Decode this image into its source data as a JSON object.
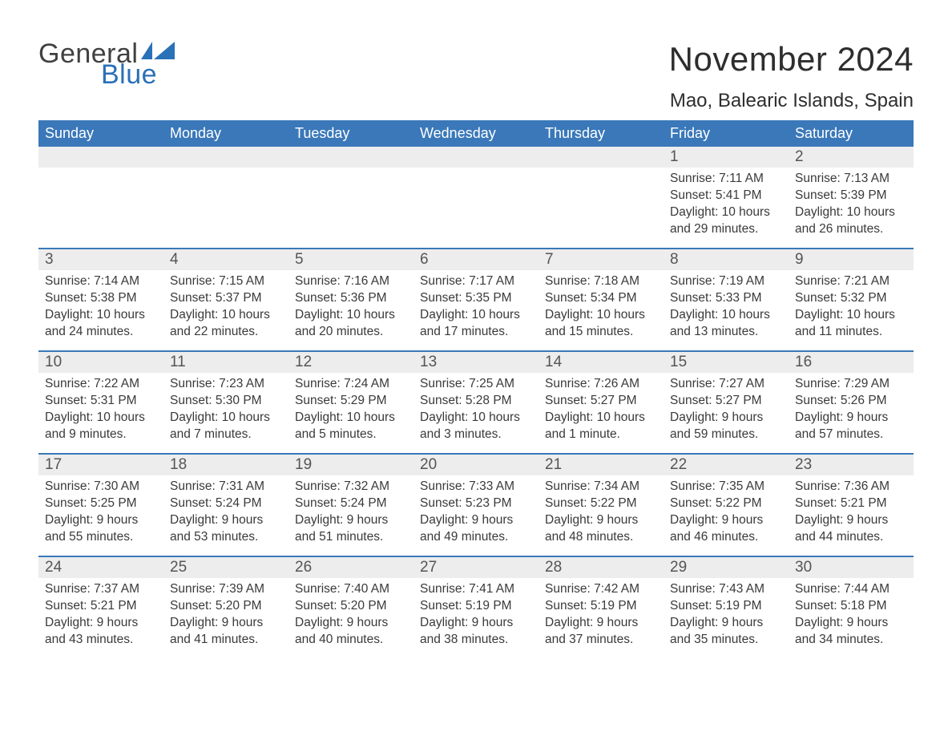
{
  "logo": {
    "text1": "General",
    "text2": "Blue",
    "flag_color": "#2a71b8"
  },
  "title": "November 2024",
  "location": "Mao, Balearic Islands, Spain",
  "colors": {
    "header_bg": "#3a78b9",
    "header_text": "#ffffff",
    "daynum_bg": "#ededed",
    "week_border": "#3a78b9",
    "body_text": "#3a3a3a",
    "page_bg": "#ffffff"
  },
  "typography": {
    "title_fontsize": 42,
    "location_fontsize": 24,
    "header_fontsize": 18,
    "daynum_fontsize": 19,
    "body_fontsize": 15.5,
    "font_family": "Arial"
  },
  "layout": {
    "columns": 7,
    "rows": 5,
    "first_day_column_index": 5
  },
  "day_names": [
    "Sunday",
    "Monday",
    "Tuesday",
    "Wednesday",
    "Thursday",
    "Friday",
    "Saturday"
  ],
  "weeks": [
    [
      null,
      null,
      null,
      null,
      null,
      {
        "n": "1",
        "sunrise": "7:11 AM",
        "sunset": "5:41 PM",
        "daylight": "10 hours and 29 minutes."
      },
      {
        "n": "2",
        "sunrise": "7:13 AM",
        "sunset": "5:39 PM",
        "daylight": "10 hours and 26 minutes."
      }
    ],
    [
      {
        "n": "3",
        "sunrise": "7:14 AM",
        "sunset": "5:38 PM",
        "daylight": "10 hours and 24 minutes."
      },
      {
        "n": "4",
        "sunrise": "7:15 AM",
        "sunset": "5:37 PM",
        "daylight": "10 hours and 22 minutes."
      },
      {
        "n": "5",
        "sunrise": "7:16 AM",
        "sunset": "5:36 PM",
        "daylight": "10 hours and 20 minutes."
      },
      {
        "n": "6",
        "sunrise": "7:17 AM",
        "sunset": "5:35 PM",
        "daylight": "10 hours and 17 minutes."
      },
      {
        "n": "7",
        "sunrise": "7:18 AM",
        "sunset": "5:34 PM",
        "daylight": "10 hours and 15 minutes."
      },
      {
        "n": "8",
        "sunrise": "7:19 AM",
        "sunset": "5:33 PM",
        "daylight": "10 hours and 13 minutes."
      },
      {
        "n": "9",
        "sunrise": "7:21 AM",
        "sunset": "5:32 PM",
        "daylight": "10 hours and 11 minutes."
      }
    ],
    [
      {
        "n": "10",
        "sunrise": "7:22 AM",
        "sunset": "5:31 PM",
        "daylight": "10 hours and 9 minutes."
      },
      {
        "n": "11",
        "sunrise": "7:23 AM",
        "sunset": "5:30 PM",
        "daylight": "10 hours and 7 minutes."
      },
      {
        "n": "12",
        "sunrise": "7:24 AM",
        "sunset": "5:29 PM",
        "daylight": "10 hours and 5 minutes."
      },
      {
        "n": "13",
        "sunrise": "7:25 AM",
        "sunset": "5:28 PM",
        "daylight": "10 hours and 3 minutes."
      },
      {
        "n": "14",
        "sunrise": "7:26 AM",
        "sunset": "5:27 PM",
        "daylight": "10 hours and 1 minute."
      },
      {
        "n": "15",
        "sunrise": "7:27 AM",
        "sunset": "5:27 PM",
        "daylight": "9 hours and 59 minutes."
      },
      {
        "n": "16",
        "sunrise": "7:29 AM",
        "sunset": "5:26 PM",
        "daylight": "9 hours and 57 minutes."
      }
    ],
    [
      {
        "n": "17",
        "sunrise": "7:30 AM",
        "sunset": "5:25 PM",
        "daylight": "9 hours and 55 minutes."
      },
      {
        "n": "18",
        "sunrise": "7:31 AM",
        "sunset": "5:24 PM",
        "daylight": "9 hours and 53 minutes."
      },
      {
        "n": "19",
        "sunrise": "7:32 AM",
        "sunset": "5:24 PM",
        "daylight": "9 hours and 51 minutes."
      },
      {
        "n": "20",
        "sunrise": "7:33 AM",
        "sunset": "5:23 PM",
        "daylight": "9 hours and 49 minutes."
      },
      {
        "n": "21",
        "sunrise": "7:34 AM",
        "sunset": "5:22 PM",
        "daylight": "9 hours and 48 minutes."
      },
      {
        "n": "22",
        "sunrise": "7:35 AM",
        "sunset": "5:22 PM",
        "daylight": "9 hours and 46 minutes."
      },
      {
        "n": "23",
        "sunrise": "7:36 AM",
        "sunset": "5:21 PM",
        "daylight": "9 hours and 44 minutes."
      }
    ],
    [
      {
        "n": "24",
        "sunrise": "7:37 AM",
        "sunset": "5:21 PM",
        "daylight": "9 hours and 43 minutes."
      },
      {
        "n": "25",
        "sunrise": "7:39 AM",
        "sunset": "5:20 PM",
        "daylight": "9 hours and 41 minutes."
      },
      {
        "n": "26",
        "sunrise": "7:40 AM",
        "sunset": "5:20 PM",
        "daylight": "9 hours and 40 minutes."
      },
      {
        "n": "27",
        "sunrise": "7:41 AM",
        "sunset": "5:19 PM",
        "daylight": "9 hours and 38 minutes."
      },
      {
        "n": "28",
        "sunrise": "7:42 AM",
        "sunset": "5:19 PM",
        "daylight": "9 hours and 37 minutes."
      },
      {
        "n": "29",
        "sunrise": "7:43 AM",
        "sunset": "5:19 PM",
        "daylight": "9 hours and 35 minutes."
      },
      {
        "n": "30",
        "sunrise": "7:44 AM",
        "sunset": "5:18 PM",
        "daylight": "9 hours and 34 minutes."
      }
    ]
  ],
  "labels": {
    "sunrise": "Sunrise: ",
    "sunset": "Sunset: ",
    "daylight": "Daylight: "
  }
}
